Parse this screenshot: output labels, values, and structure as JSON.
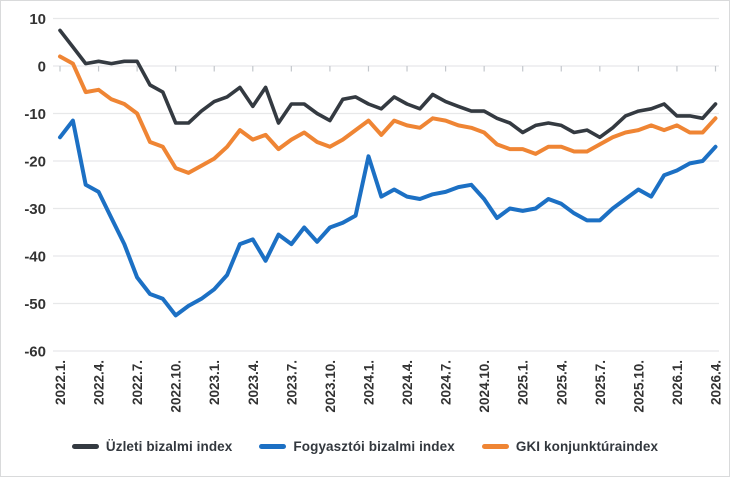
{
  "chart_data": {
    "type": "line",
    "title": "",
    "xlabel": "",
    "ylabel": "",
    "ylim": [
      -60,
      10
    ],
    "y_tick_labels": [
      "10",
      "0",
      "-10",
      "-20",
      "-30",
      "-40",
      "-50",
      "-60"
    ],
    "y_tick_values": [
      10,
      0,
      -10,
      -20,
      -30,
      -40,
      -50,
      -60
    ],
    "x_tick_every": 3,
    "n_points": 52,
    "x_tick_labels": [
      "2022.1.",
      "2022.4.",
      "2022.7.",
      "2022.10.",
      "2023.1.",
      "2023.4.",
      "2023.7.",
      "2023.10.",
      "2024.1.",
      "2024.4.",
      "2024.7.",
      "2024.10.",
      "2025.1.",
      "2025.4.",
      "2025.7.",
      "2025.10.",
      "2026.1.",
      "2026.4."
    ],
    "grid": true,
    "legend_position": "bottom",
    "series": [
      {
        "name": "Üzleti bizalmi index",
        "color": "#343a41",
        "stroke_width": 3.6,
        "values": [
          7.5,
          4,
          0.5,
          1,
          0.5,
          1,
          1,
          -4,
          -5.5,
          -12,
          -12,
          -9.5,
          -7.5,
          -6.5,
          -4.5,
          -8.5,
          -4.5,
          -12,
          -8,
          -8,
          -10,
          -11.5,
          -7,
          -6.5,
          -8,
          -9,
          -6.5,
          -8,
          -9,
          -6,
          -7.5,
          -8.5,
          -9.5,
          -9.5,
          -11,
          -12,
          -14,
          -12.5,
          -12,
          -12.5,
          -14,
          -13.5,
          -15,
          -13,
          -10.5,
          -9.5,
          -9,
          -8,
          -10.5,
          -10.5,
          -11,
          -8
        ]
      },
      {
        "name": "Fogyasztói bizalmi index",
        "color": "#1c70c4",
        "stroke_width": 4,
        "values": [
          -15,
          -11.5,
          -25,
          -26.5,
          -32,
          -37.5,
          -44.5,
          -48,
          -49,
          -52.5,
          -50.5,
          -49,
          -47,
          -44,
          -37.5,
          -36.5,
          -41,
          -35.5,
          -37.5,
          -34,
          -37,
          -34,
          -33,
          -31.5,
          -19,
          -27.5,
          -26,
          -27.5,
          -28,
          -27,
          -26.5,
          -25.5,
          -25,
          -28,
          -32,
          -30,
          -30.5,
          -30,
          -28,
          -29,
          -31,
          -32.5,
          -32.5,
          -30,
          -28,
          -26,
          -27.5,
          -23,
          -22,
          -20.5,
          -20,
          -17
        ]
      },
      {
        "name": "GKI konjunktúraindex",
        "color": "#ef8534",
        "stroke_width": 4,
        "values": [
          2,
          0.5,
          -5.5,
          -5,
          -7,
          -8,
          -10,
          -16,
          -17,
          -21.5,
          -22.5,
          -21,
          -19.5,
          -17,
          -13.5,
          -15.5,
          -14.5,
          -17.5,
          -15.5,
          -14,
          -16,
          -17,
          -15.5,
          -13.5,
          -11.5,
          -14.5,
          -11.5,
          -12.5,
          -13,
          -11,
          -11.5,
          -12.5,
          -13,
          -14,
          -16.5,
          -17.5,
          -17.5,
          -18.5,
          -17,
          -17,
          -18,
          -18,
          -16.5,
          -15,
          -14,
          -13.5,
          -12.5,
          -13.5,
          -12.5,
          -14,
          -14,
          -11
        ]
      }
    ],
    "colors": {
      "grid_line": "#e7e8e9",
      "zero_axis_tick": "#c3c7cc",
      "axis_label": "#333333",
      "background": "#ffffff",
      "border": "#d9dadb"
    }
  }
}
